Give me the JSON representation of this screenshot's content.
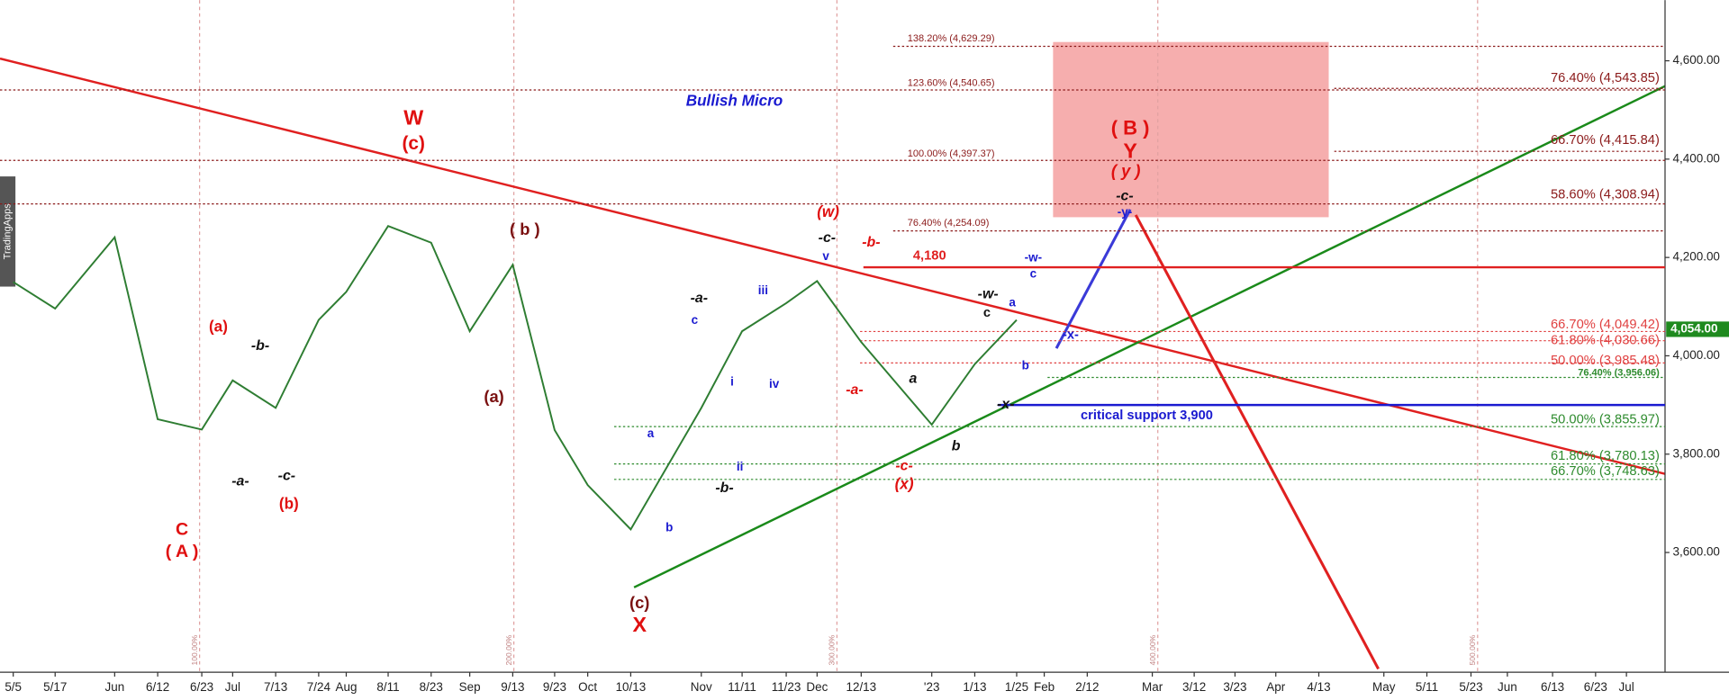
{
  "chart_data": {
    "type": "line",
    "watermark": "TradingApps",
    "categories": [
      "5/5",
      "5/17",
      "Jun",
      "6/12",
      "6/23",
      "Jul",
      "7/13",
      "7/24",
      "Aug",
      "8/11",
      "8/23",
      "Sep",
      "9/13",
      "9/23",
      "Oct",
      "10/13",
      "Nov",
      "11/11",
      "11/23",
      "Dec",
      "12/13",
      "'23",
      "1/13",
      "1/25",
      "Feb",
      "2/12",
      "Mar",
      "3/12",
      "3/23",
      "Apr",
      "4/13",
      "May",
      "5/11",
      "5/23",
      "Jun",
      "6/13",
      "6/23",
      "Jul"
    ],
    "series": [
      {
        "color": "#2e7d32",
        "values": [
          4150,
          4096,
          4241,
          3871,
          3850,
          3950,
          3894,
          4073,
          4130,
          4264,
          4230,
          4050,
          4185,
          3849,
          3737,
          3647,
          3894,
          4050,
          4107,
          4152,
          4028,
          3860,
          3983,
          4073,
          null,
          null,
          null,
          null,
          null,
          null,
          null,
          null,
          null,
          null,
          null,
          null,
          null,
          null
        ]
      }
    ],
    "ylim": [
      3356.5,
      4723.3
    ],
    "yticks": [
      {
        "value": 3600,
        "label": "3,600.00"
      },
      {
        "value": 3800,
        "label": "3,800.00"
      },
      {
        "value": 4000,
        "label": "4,000.00"
      },
      {
        "value": 4200,
        "label": "4,200.00"
      },
      {
        "value": 4400,
        "label": "4,400.00"
      },
      {
        "value": 4600,
        "label": "4,600.00"
      }
    ],
    "price_tag": {
      "value": 4054,
      "label": "4,054.00"
    },
    "levels": [
      {
        "value": 4629.29,
        "label": "138.20% (4,629.29)",
        "color": "#8b1a1a"
      },
      {
        "value": 4540.65,
        "label": "123.60% (4,540.65)",
        "color": "#8b1a1a"
      },
      {
        "value": 4397.37,
        "label": "100.00% (4,397.37)",
        "color": "#8b1a1a"
      },
      {
        "value": 4254.09,
        "label": "76.40% (4,254.09)",
        "color": "#8b1a1a"
      },
      {
        "value": 4543.85,
        "label": "76.40% (4,543.85)",
        "color": "#8b1a1a"
      },
      {
        "value": 4415.84,
        "label": "66.70% (4,415.84)",
        "color": "#8b1a1a"
      },
      {
        "value": 4308.94,
        "label": "58.60% (4,308.94)",
        "color": "#8b1a1a"
      },
      {
        "value": 4180,
        "label": "4,180",
        "color": "#e02020"
      },
      {
        "value": 4049.42,
        "label": "66.70% (4,049.42)",
        "color": "#e04040"
      },
      {
        "value": 4030.66,
        "label": "61.80% (4,030.66)",
        "color": "#e04040"
      },
      {
        "value": 3985.48,
        "label": "50.00% (3,985.48)",
        "color": "#e04040"
      },
      {
        "value": 3956.06,
        "label": "76.40% (3,956.06)",
        "color": "#2e8b2e"
      },
      {
        "value": 3900,
        "label": "critical support 3,900",
        "color": "#1a1ad0"
      },
      {
        "value": 3855.97,
        "label": "50.00% (3,855.97)",
        "color": "#2e8b2e"
      },
      {
        "value": 3780.13,
        "label": "61.80% (3,780.13)",
        "color": "#2e8b2e"
      },
      {
        "value": 3748.63,
        "label": "66.70% (3,748.63)",
        "color": "#2e8b2e"
      }
    ],
    "cycle_labels": [
      "100.00%",
      "200.00%",
      "300.00%",
      "400.00%",
      "500.00%"
    ],
    "annotations": [
      "W",
      "(c)",
      "C",
      "( A )",
      "(a)",
      "(b)",
      "-a-",
      "-c-",
      "-b-",
      "( b )",
      "(a)",
      "(c)",
      "X",
      "a",
      "b",
      "c",
      "-a-",
      "i",
      "ii",
      "-b-",
      "iii",
      "iv",
      "v",
      "-c-",
      "(w)",
      "-b-",
      "-a-",
      "a",
      "b",
      "-c-",
      "(x)",
      "-w-",
      "c",
      "a",
      "c",
      "-w-",
      "b",
      "-x-",
      "-x-",
      "( B )",
      "Y",
      "( y )",
      "-c-",
      "-y-",
      "Bullish Micro"
    ]
  }
}
